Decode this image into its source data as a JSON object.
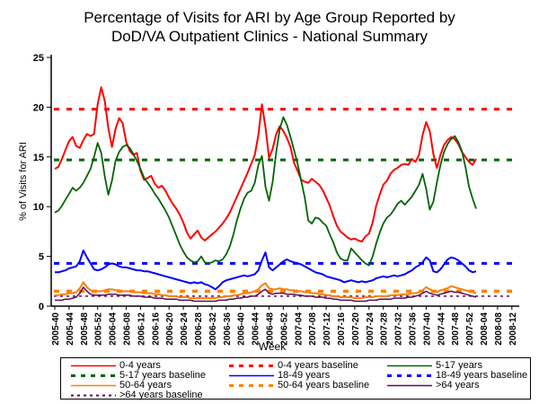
{
  "title": {
    "line1": "Percentage of Visits for ARI by Age Group Reported by",
    "line2": "DoD/VA Outpatient Clinics - National Summary"
  },
  "chart_data": {
    "type": "line",
    "title": "Percentage of Visits for ARI by Age Group Reported by DoD/VA Outpatient Clinics - National Summary",
    "xlabel": "Week",
    "ylabel": "% of Visits for ARI",
    "ylim": [
      0,
      25
    ],
    "yticks": [
      0,
      5,
      10,
      15,
      20,
      25
    ],
    "grid": false,
    "legend_position": "bottom",
    "x_tick_labels": [
      "2005-40",
      "2005-44",
      "2005-48",
      "2005-52",
      "2006-04",
      "2006-08",
      "2006-12",
      "2006-16",
      "2006-20",
      "2006-24",
      "2006-28",
      "2006-32",
      "2006-36",
      "2006-40",
      "2006-44",
      "2006-48",
      "2006-52",
      "2007-04",
      "2007-08",
      "2007-12",
      "2007-16",
      "2007-20",
      "2007-24",
      "2007-28",
      "2007-32",
      "2007-36",
      "2007-40",
      "2007-44",
      "2007-48",
      "2007-52",
      "2008-04",
      "2008-08",
      "2008-12"
    ],
    "weeks_per_tick": 4,
    "data_start_week": "2005-40",
    "data_end_week": "2008-02",
    "series": [
      {
        "name": "0-4 years",
        "color": "#ff0000",
        "width": 2,
        "values": [
          13.8,
          14.0,
          14.8,
          15.7,
          16.6,
          17.0,
          16.1,
          15.9,
          16.7,
          17.3,
          17.1,
          17.3,
          20.3,
          22.0,
          20.6,
          17.9,
          16.0,
          17.8,
          18.9,
          18.4,
          16.5,
          15.6,
          15.2,
          15.4,
          13.6,
          12.7,
          12.9,
          13.1,
          12.3,
          11.9,
          12.1,
          11.6,
          10.9,
          10.3,
          9.8,
          9.2,
          8.4,
          7.4,
          6.8,
          7.2,
          7.6,
          6.9,
          6.6,
          6.9,
          7.2,
          7.5,
          7.9,
          8.3,
          8.8,
          9.4,
          10.2,
          11.0,
          11.8,
          12.6,
          13.4,
          14.3,
          15.2,
          17.2,
          20.3,
          18.0,
          14.9,
          15.8,
          17.3,
          18.1,
          17.6,
          16.9,
          16.0,
          14.4,
          13.6,
          12.7,
          12.5,
          12.4,
          12.8,
          12.5,
          12.2,
          11.7,
          10.9,
          10.1,
          9.0,
          8.1,
          7.5,
          7.2,
          6.9,
          6.7,
          6.8,
          6.6,
          6.5,
          7.0,
          7.3,
          8.4,
          10.1,
          11.2,
          12.2,
          12.6,
          13.3,
          13.7,
          13.9,
          14.2,
          14.3,
          14.2,
          14.8,
          14.5,
          15.2,
          17.2,
          18.5,
          17.6,
          15.3,
          13.9,
          15.2,
          16.2,
          16.7,
          17.0,
          16.8,
          16.3,
          15.5,
          15.0,
          14.5,
          14.2,
          14.8
        ]
      },
      {
        "name": "5-17 years",
        "color": "#006400",
        "width": 1.8,
        "values": [
          9.4,
          9.6,
          10.1,
          10.7,
          11.3,
          11.9,
          11.6,
          11.9,
          12.4,
          13.1,
          13.8,
          15.0,
          16.4,
          15.4,
          13.0,
          11.2,
          12.6,
          14.6,
          15.5,
          16.0,
          16.2,
          15.9,
          15.3,
          14.6,
          13.8,
          12.9,
          12.4,
          11.9,
          11.3,
          10.8,
          10.2,
          9.6,
          8.9,
          8.0,
          7.1,
          6.2,
          5.5,
          4.9,
          4.6,
          4.4,
          4.5,
          5.0,
          4.4,
          4.3,
          4.4,
          4.6,
          4.5,
          4.7,
          5.2,
          6.0,
          7.2,
          8.6,
          9.8,
          10.8,
          11.4,
          11.6,
          12.4,
          14.2,
          15.1,
          12.0,
          10.6,
          12.5,
          15.5,
          17.8,
          19.0,
          18.2,
          17.0,
          15.7,
          14.3,
          12.6,
          10.9,
          8.6,
          8.3,
          8.9,
          8.8,
          8.4,
          8.1,
          7.2,
          6.4,
          5.4,
          4.8,
          4.6,
          4.6,
          5.8,
          5.4,
          5.0,
          4.6,
          4.3,
          4.1,
          5.0,
          6.3,
          7.4,
          8.3,
          8.9,
          9.2,
          9.7,
          10.3,
          10.6,
          10.2,
          10.6,
          11.0,
          11.6,
          12.2,
          13.3,
          11.8,
          9.7,
          10.5,
          12.4,
          14.2,
          15.5,
          16.3,
          16.8,
          17.1,
          16.5,
          15.6,
          14.0,
          12.0,
          10.8,
          9.8
        ]
      },
      {
        "name": "18-49 years",
        "color": "#0000ff",
        "width": 2,
        "values": [
          3.4,
          3.4,
          3.5,
          3.6,
          3.8,
          3.9,
          4.0,
          4.5,
          5.6,
          4.9,
          4.3,
          3.7,
          3.6,
          3.7,
          3.9,
          4.2,
          4.3,
          4.2,
          4.0,
          3.9,
          3.9,
          3.8,
          3.7,
          3.6,
          3.6,
          3.5,
          3.5,
          3.4,
          3.3,
          3.2,
          3.1,
          3.0,
          2.9,
          2.8,
          2.7,
          2.6,
          2.5,
          2.4,
          2.3,
          2.4,
          2.3,
          2.4,
          2.2,
          2.1,
          1.9,
          1.7,
          2.0,
          2.4,
          2.6,
          2.7,
          2.8,
          2.9,
          3.0,
          3.1,
          3.0,
          3.1,
          3.2,
          3.6,
          4.6,
          5.4,
          3.9,
          3.6,
          3.9,
          4.2,
          4.5,
          4.7,
          4.5,
          4.4,
          4.3,
          4.2,
          4.0,
          3.8,
          3.6,
          3.4,
          3.3,
          3.2,
          3.0,
          2.9,
          2.8,
          2.7,
          2.6,
          2.4,
          2.5,
          2.6,
          2.5,
          2.4,
          2.5,
          2.4,
          2.5,
          2.6,
          2.8,
          2.9,
          3.0,
          2.9,
          3.0,
          3.1,
          3.0,
          3.1,
          3.2,
          3.4,
          3.6,
          3.9,
          4.1,
          4.4,
          4.9,
          4.6,
          3.5,
          3.4,
          3.7,
          4.2,
          4.7,
          4.9,
          4.8,
          4.6,
          4.3,
          4.0,
          3.6,
          3.4,
          3.5
        ]
      },
      {
        "name": "50-64 years",
        "color": "#ff8000",
        "width": 2,
        "values": [
          1.1,
          1.1,
          1.2,
          1.2,
          1.3,
          1.3,
          1.4,
          1.8,
          2.4,
          1.9,
          1.6,
          1.5,
          1.5,
          1.5,
          1.6,
          1.7,
          1.7,
          1.6,
          1.6,
          1.5,
          1.5,
          1.5,
          1.4,
          1.4,
          1.4,
          1.3,
          1.3,
          1.3,
          1.2,
          1.2,
          1.1,
          1.1,
          1.0,
          1.0,
          1.0,
          0.9,
          0.9,
          0.9,
          0.8,
          0.8,
          0.8,
          0.8,
          0.8,
          0.8,
          0.8,
          0.8,
          0.9,
          0.9,
          1.0,
          1.0,
          1.1,
          1.1,
          1.2,
          1.3,
          1.3,
          1.4,
          1.5,
          1.7,
          2.1,
          2.3,
          1.8,
          1.7,
          1.7,
          1.8,
          1.7,
          1.7,
          1.6,
          1.6,
          1.5,
          1.5,
          1.4,
          1.4,
          1.3,
          1.3,
          1.2,
          1.2,
          1.1,
          1.1,
          1.0,
          1.0,
          0.9,
          0.9,
          0.9,
          0.9,
          0.8,
          0.8,
          0.8,
          0.9,
          0.9,
          0.9,
          1.0,
          1.0,
          1.0,
          1.0,
          1.1,
          1.1,
          1.1,
          1.2,
          1.2,
          1.2,
          1.3,
          1.3,
          1.4,
          1.6,
          1.9,
          1.7,
          1.5,
          1.4,
          1.6,
          1.7,
          1.8,
          2.0,
          1.9,
          1.8,
          1.7,
          1.6,
          1.5,
          1.4,
          1.3
        ]
      },
      {
        "name": ">64 years",
        "color": "#5a0b5a",
        "width": 1.5,
        "values": [
          0.6,
          0.6,
          0.6,
          0.7,
          0.7,
          0.8,
          0.9,
          1.3,
          1.9,
          1.5,
          1.2,
          1.1,
          1.1,
          1.1,
          1.1,
          1.2,
          1.2,
          1.2,
          1.1,
          1.1,
          1.1,
          1.1,
          1.0,
          1.0,
          1.0,
          0.9,
          0.9,
          0.9,
          0.8,
          0.8,
          0.8,
          0.7,
          0.7,
          0.7,
          0.7,
          0.6,
          0.6,
          0.6,
          0.6,
          0.5,
          0.5,
          0.5,
          0.5,
          0.5,
          0.5,
          0.5,
          0.6,
          0.6,
          0.6,
          0.7,
          0.7,
          0.8,
          0.8,
          0.9,
          0.9,
          1.0,
          1.0,
          1.2,
          1.5,
          1.7,
          1.3,
          1.2,
          1.3,
          1.3,
          1.3,
          1.2,
          1.2,
          1.2,
          1.1,
          1.1,
          1.0,
          1.0,
          1.0,
          0.9,
          0.9,
          0.9,
          0.8,
          0.8,
          0.7,
          0.7,
          0.6,
          0.6,
          0.6,
          0.6,
          0.5,
          0.5,
          0.5,
          0.5,
          0.6,
          0.6,
          0.6,
          0.7,
          0.7,
          0.7,
          0.7,
          0.8,
          0.8,
          0.8,
          0.8,
          0.9,
          0.9,
          1.0,
          1.1,
          1.3,
          1.5,
          1.3,
          1.2,
          1.1,
          1.2,
          1.3,
          1.4,
          1.5,
          1.4,
          1.4,
          1.3,
          1.2,
          1.1,
          1.0,
          0.9
        ]
      }
    ],
    "baselines": [
      {
        "name": "0-4 years baseline",
        "color": "#ff0000",
        "value": 19.8,
        "width": 3,
        "dash": "6 8"
      },
      {
        "name": "5-17 years baseline",
        "color": "#006400",
        "value": 14.7,
        "width": 3,
        "dash": "6 8"
      },
      {
        "name": "18-49 years baseline",
        "color": "#0000ff",
        "value": 4.3,
        "width": 3,
        "dash": "6 8"
      },
      {
        "name": "50-64 years baseline",
        "color": "#ff8000",
        "value": 1.5,
        "width": 3.5,
        "dash": "6 8"
      },
      {
        "name": ">64 years baseline",
        "color": "#5a0b5a",
        "value": 1.0,
        "width": 1.5,
        "dash": "3 4"
      }
    ],
    "legend": [
      {
        "label": "0-4 years",
        "color": "#ff0000",
        "dashed": false
      },
      {
        "label": "0-4 years baseline",
        "color": "#ff0000",
        "dashed": true
      },
      {
        "label": "5-17 years",
        "color": "#006400",
        "dashed": false
      },
      {
        "label": "5-17 years baseline",
        "color": "#006400",
        "dashed": true
      },
      {
        "label": "18-49 years",
        "color": "#0000ff",
        "dashed": false
      },
      {
        "label": "18-49 years baseline",
        "color": "#0000ff",
        "dashed": true
      },
      {
        "label": "50-64 years",
        "color": "#ff8000",
        "dashed": false
      },
      {
        "label": "50-64 years baseline",
        "color": "#ff8000",
        "dashed": true
      },
      {
        "label": ">64 years",
        "color": "#5a0b5a",
        "dashed": false
      },
      {
        "label": ">64 years baseline",
        "color": "#5a0b5a",
        "dashed": true,
        "thin": true
      }
    ]
  }
}
